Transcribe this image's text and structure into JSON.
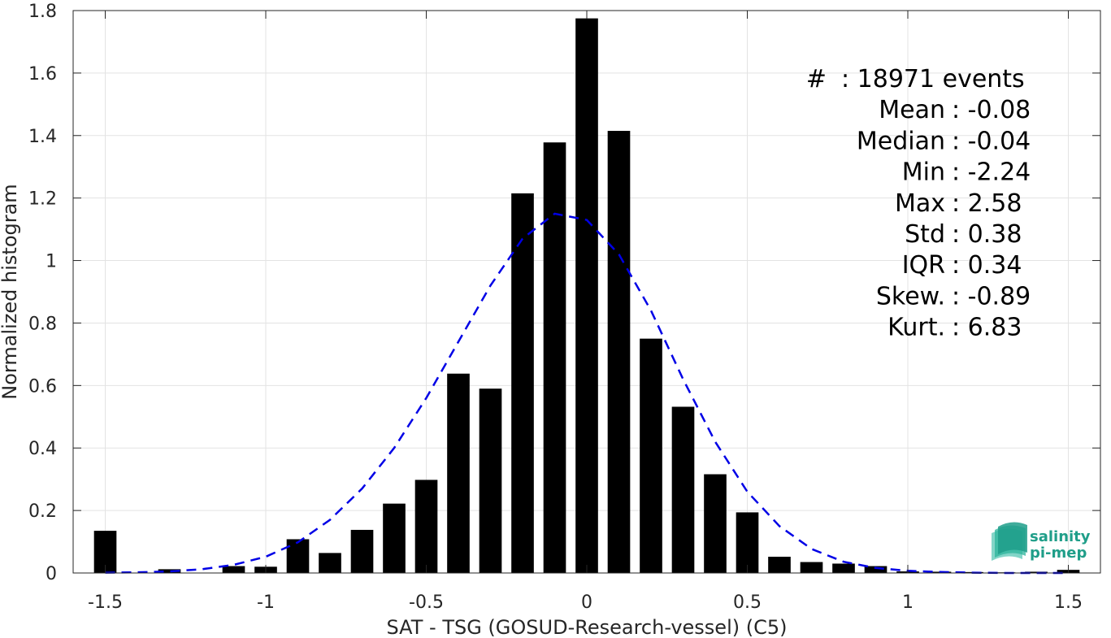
{
  "chart_data": {
    "type": "bar",
    "xlabel": "SAT - TSG (GOSUD-Research-vessel) (C5)",
    "ylabel": "Normalized histogram",
    "xlim": [
      -1.6,
      1.6
    ],
    "ylim": [
      0,
      1.8
    ],
    "xticks": [
      -1.5,
      -1,
      -0.5,
      0,
      0.5,
      1,
      1.5
    ],
    "xtick_labels": [
      "-1.5",
      "-1",
      "-0.5",
      "0",
      "0.5",
      "1",
      "1.5"
    ],
    "yticks": [
      0,
      0.2,
      0.4,
      0.6,
      0.8,
      1,
      1.2,
      1.4,
      1.6,
      1.8
    ],
    "ytick_labels": [
      "0",
      "0.2",
      "0.4",
      "0.6",
      "0.8",
      "1",
      "1.2",
      "1.4",
      "1.6",
      "1.8"
    ],
    "grid": true,
    "bar_color": "#000000",
    "bin_width": 0.1,
    "bar_fraction": 0.7,
    "bars": {
      "x": [
        -1.5,
        -1.4,
        -1.3,
        -1.2,
        -1.1,
        -1.0,
        -0.9,
        -0.8,
        -0.7,
        -0.6,
        -0.5,
        -0.4,
        -0.3,
        -0.2,
        -0.1,
        0.0,
        0.1,
        0.2,
        0.3,
        0.4,
        0.5,
        0.6,
        0.7,
        0.8,
        0.9,
        1.0,
        1.1,
        1.2,
        1.3,
        1.4,
        1.5
      ],
      "values": [
        0.135,
        0.0,
        0.012,
        0.0,
        0.022,
        0.02,
        0.108,
        0.064,
        0.138,
        0.222,
        0.298,
        0.638,
        0.59,
        1.215,
        1.378,
        1.775,
        1.415,
        0.75,
        0.532,
        0.316,
        0.194,
        0.052,
        0.035,
        0.03,
        0.022,
        0.005,
        0.004,
        0.003,
        0.002,
        0.004,
        0.01
      ]
    },
    "fit_curve": {
      "color": "#0000e6",
      "style": "dashed",
      "x": [
        -1.5,
        -1.4,
        -1.3,
        -1.2,
        -1.1,
        -1.0,
        -0.9,
        -0.8,
        -0.7,
        -0.6,
        -0.5,
        -0.4,
        -0.3,
        -0.2,
        -0.1,
        0.0,
        0.1,
        0.2,
        0.3,
        0.4,
        0.5,
        0.6,
        0.7,
        0.8,
        0.9,
        1.0,
        1.1,
        1.2,
        1.3,
        1.4,
        1.5
      ],
      "y": [
        0.001,
        0.002,
        0.005,
        0.012,
        0.026,
        0.052,
        0.098,
        0.17,
        0.27,
        0.4,
        0.56,
        0.74,
        0.92,
        1.07,
        1.15,
        1.13,
        1.02,
        0.84,
        0.62,
        0.42,
        0.26,
        0.15,
        0.077,
        0.036,
        0.016,
        0.007,
        0.003,
        0.001,
        0.0,
        0.0,
        0.0
      ]
    },
    "stats": [
      {
        "label": "#  ",
        "value": "18971 events"
      },
      {
        "label": "Mean",
        "value": "-0.08"
      },
      {
        "label": "Median",
        "value": "-0.04"
      },
      {
        "label": "Min",
        "value": "-2.24"
      },
      {
        "label": "Max",
        "value": "2.58"
      },
      {
        "label": "Std",
        "value": "0.38"
      },
      {
        "label": "IQR",
        "value": "0.34"
      },
      {
        "label": "Skew.",
        "value": "-0.89"
      },
      {
        "label": "Kurt.",
        "value": "6.83"
      }
    ]
  },
  "logo": {
    "line1": "salinity",
    "line2": "pi-mep",
    "accent": "#1f9e89"
  }
}
